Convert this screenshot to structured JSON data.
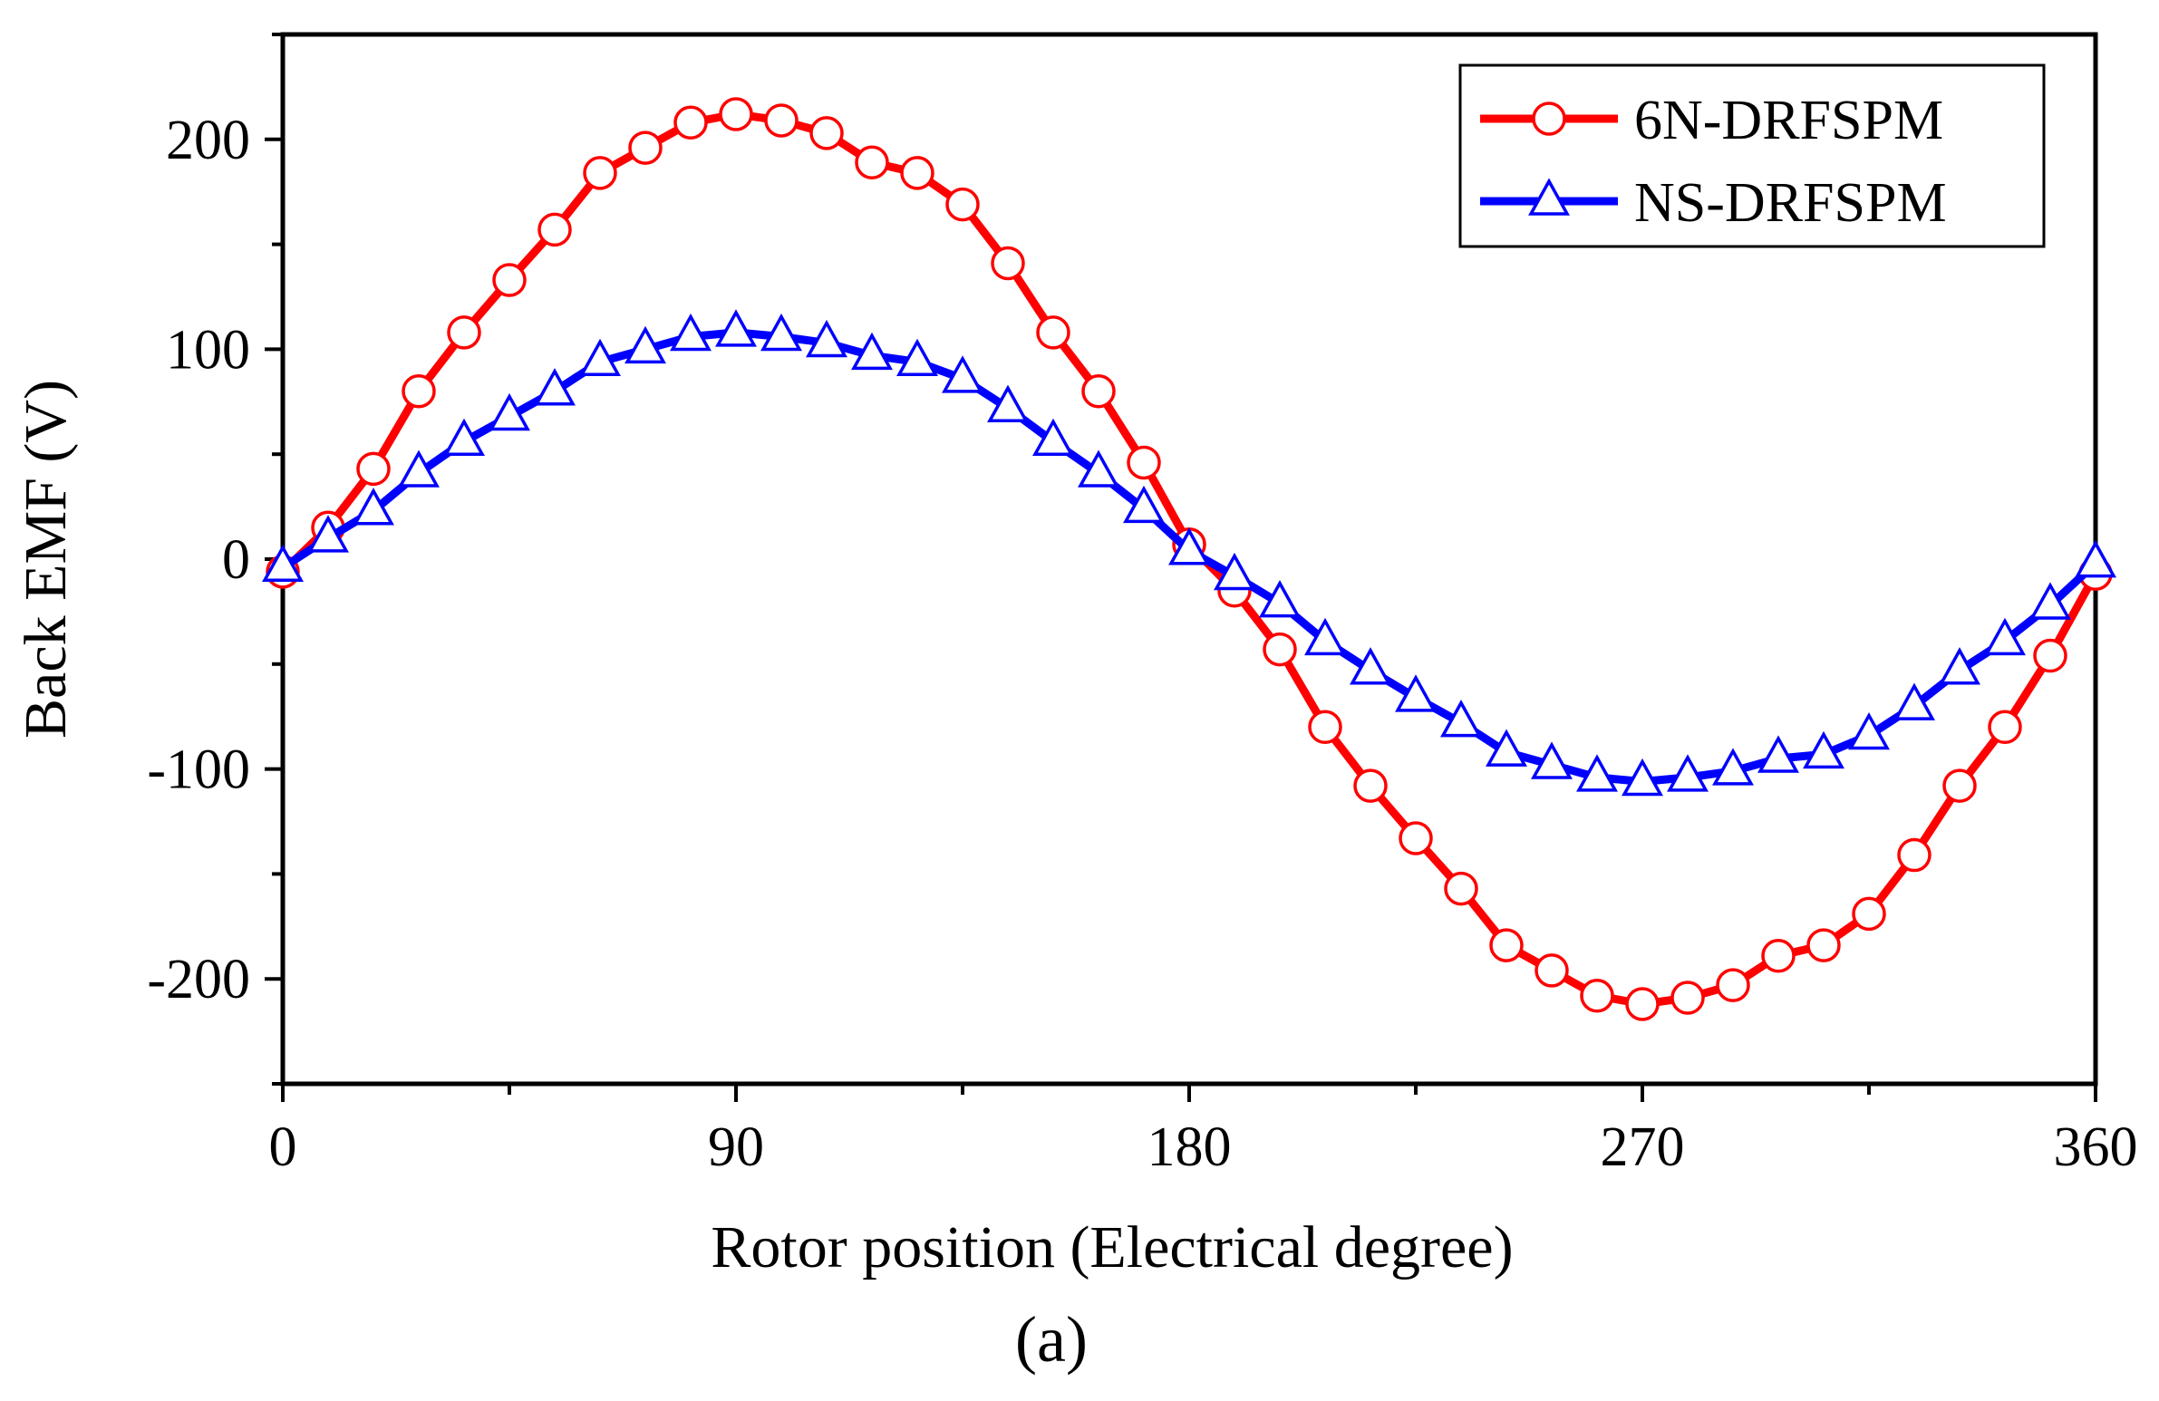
{
  "chart_data": {
    "type": "line",
    "title": "",
    "xlabel": "Rotor position (Electrical degree)",
    "ylabel": "Back EMF (V)",
    "xlim": [
      0,
      360
    ],
    "ylim": [
      -250,
      250
    ],
    "xticks": [
      0,
      90,
      180,
      270,
      360
    ],
    "yticks": [
      -200,
      -100,
      0,
      100,
      200
    ],
    "x_tick_labels": [
      "0",
      "90",
      "180",
      "270",
      "360"
    ],
    "y_tick_labels": [
      "-200",
      "-100",
      "0",
      "100",
      "200"
    ],
    "grid": false,
    "legend_position": "top-right",
    "x": [
      0,
      9,
      18,
      27,
      36,
      45,
      54,
      63,
      72,
      81,
      90,
      99,
      108,
      117,
      126,
      135,
      144,
      153,
      162,
      171,
      180,
      189,
      198,
      207,
      216,
      225,
      234,
      243,
      252,
      261,
      270,
      279,
      288,
      297,
      306,
      315,
      324,
      333,
      342,
      351,
      360
    ],
    "series": [
      {
        "name": "6N-DRFSPM",
        "color": "#ff0000",
        "marker": "circle",
        "values": [
          -6,
          15,
          43,
          80,
          108,
          133,
          157,
          184,
          196,
          208,
          212,
          209,
          203,
          189,
          184,
          169,
          141,
          108,
          80,
          46,
          7,
          -15,
          -43,
          -80,
          -108,
          -133,
          -157,
          -184,
          -196,
          -208,
          -212,
          -209,
          -203,
          -189,
          -184,
          -169,
          -141,
          -108,
          -80,
          -46,
          -7
        ]
      },
      {
        "name": "NS-DRFSPM",
        "color": "#0000ff",
        "marker": "triangle",
        "values": [
          -4,
          10,
          23,
          41,
          56,
          68,
          80,
          94,
          100,
          106,
          108,
          106,
          103,
          97,
          94,
          86,
          72,
          56,
          41,
          24,
          4,
          -8,
          -21,
          -39,
          -53,
          -66,
          -78,
          -92,
          -98,
          -104,
          -106,
          -104,
          -101,
          -95,
          -93,
          -84,
          -70,
          -53,
          -39,
          -22,
          -2
        ]
      }
    ],
    "caption": "(a)"
  }
}
